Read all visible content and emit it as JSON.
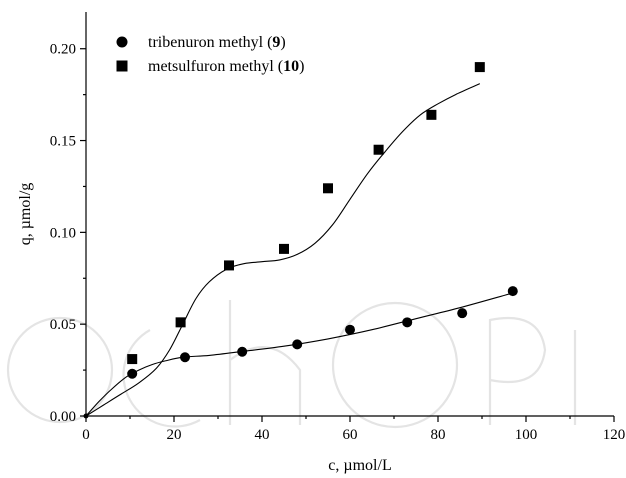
{
  "chart_data": {
    "type": "scatter",
    "xlabel": "c, µmol/L",
    "ylabel": "q, µmol/g",
    "xlim": [
      0,
      120
    ],
    "ylim": [
      0,
      0.22
    ],
    "xticks": [
      0,
      20,
      40,
      60,
      80,
      100,
      120
    ],
    "yticks": [
      0.0,
      0.05,
      0.1,
      0.15,
      0.2
    ],
    "xtick_labels": [
      "0",
      "20",
      "40",
      "60",
      "80",
      "100",
      "120"
    ],
    "ytick_labels": [
      "0.00",
      "0.05",
      "0.10",
      "0.15",
      "0.20"
    ],
    "grid": false,
    "legend_position": "top-left",
    "series": [
      {
        "name": "tribenuron methyl (9)",
        "name_text": "tribenuron methyl (",
        "name_bold": "9",
        "name_close": ")",
        "marker": "circle",
        "x": [
          10.5,
          22.5,
          35.5,
          48,
          60,
          73,
          85.5,
          97
        ],
        "y": [
          0.023,
          0.032,
          0.035,
          0.039,
          0.047,
          0.051,
          0.056,
          0.068
        ],
        "fit_curve": {
          "x": [
            0,
            3,
            6,
            9,
            12,
            15,
            18,
            22,
            28,
            35,
            45,
            55,
            65,
            75,
            85,
            97
          ],
          "y": [
            0,
            0.008,
            0.015,
            0.021,
            0.025,
            0.028,
            0.03,
            0.032,
            0.033,
            0.035,
            0.038,
            0.042,
            0.047,
            0.053,
            0.059,
            0.067
          ]
        }
      },
      {
        "name": "metsulfuron methyl (10)",
        "name_text": "metsulfuron methyl (",
        "name_bold": "10",
        "name_close": ")",
        "marker": "square",
        "x": [
          10.5,
          21.5,
          32.5,
          45,
          55,
          66.5,
          78.5,
          89.5
        ],
        "y": [
          0.031,
          0.051,
          0.082,
          0.091,
          0.124,
          0.145,
          0.164,
          0.19
        ],
        "fit_curve": {
          "x": [
            0,
            4,
            8,
            12,
            16,
            19,
            22,
            25,
            28,
            32,
            36,
            40,
            44,
            48,
            52,
            56,
            60,
            64,
            68,
            72,
            76,
            80,
            84,
            89.5
          ],
          "y": [
            0,
            0.006,
            0.012,
            0.018,
            0.026,
            0.036,
            0.05,
            0.064,
            0.073,
            0.08,
            0.083,
            0.084,
            0.085,
            0.088,
            0.094,
            0.104,
            0.118,
            0.132,
            0.144,
            0.155,
            0.164,
            0.17,
            0.175,
            0.181
          ]
        }
      }
    ]
  }
}
